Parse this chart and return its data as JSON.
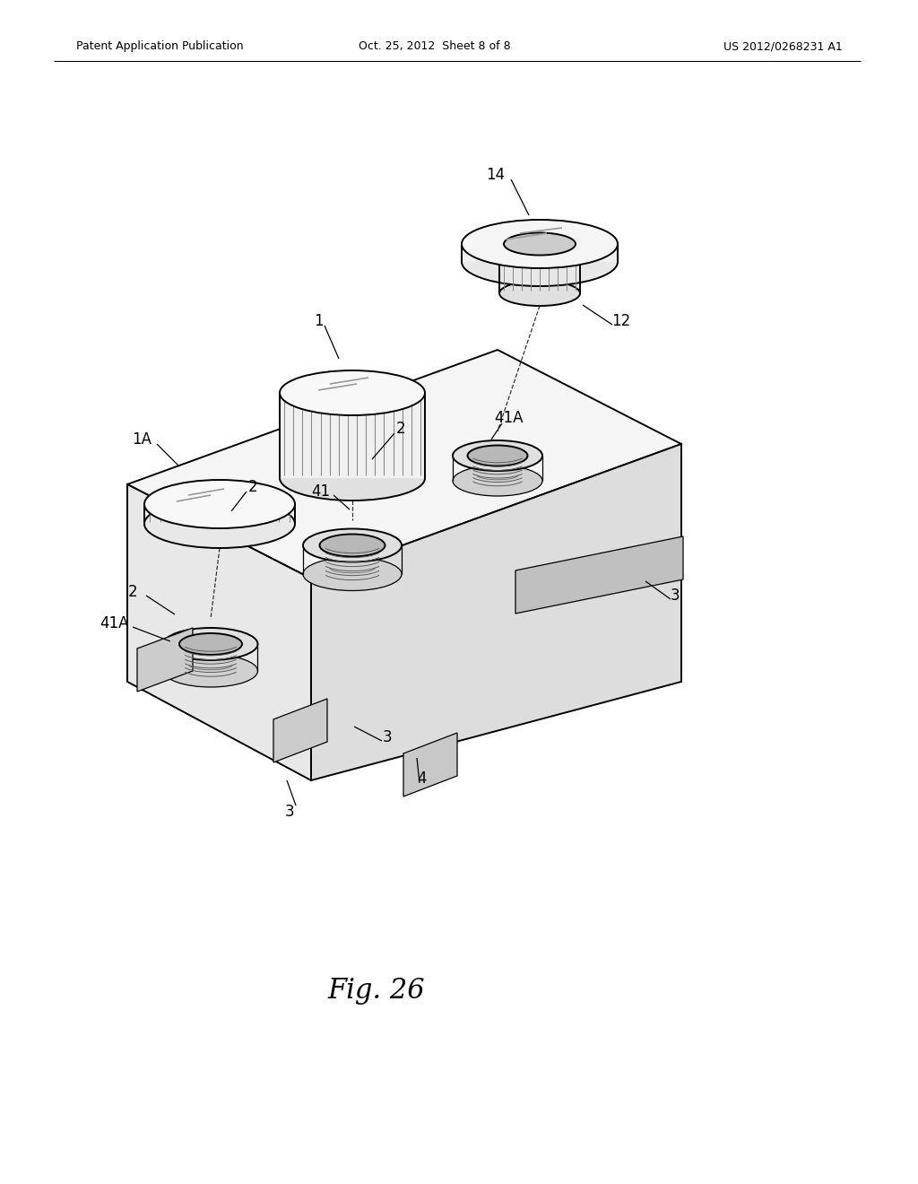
{
  "title": "Fig. 26",
  "header_left": "Patent Application Publication",
  "header_center": "Oct. 25, 2012  Sheet 8 of 8",
  "header_right": "US 2012/0268231 A1",
  "background_color": "#ffffff",
  "line_color": "#000000",
  "fig_width": 10.24,
  "fig_height": 13.2,
  "dpi": 100
}
